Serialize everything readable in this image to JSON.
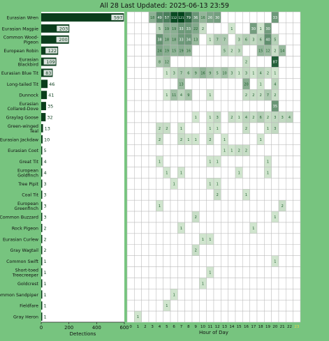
{
  "title": "All 28 Last Updated: 2025-06-13 23:59",
  "chart_data": [
    {
      "type": "bar",
      "orientation": "horizontal",
      "xlabel": "Detections",
      "xlim": [
        0,
        600
      ],
      "xticks": [
        "0",
        "200",
        "400",
        "600"
      ],
      "categories": [
        "Eurasian Wren",
        "Eurasian Magpie",
        "Common Wood-Pigeon",
        "European Robin",
        "Eurasian Blackbird",
        "Eurasian Blue Tit",
        "Long-tailed Tit",
        "Dunnock",
        "Eurasian Collared-Dove",
        "Graylag Goose",
        "Green-winged Teal",
        "Eurasian Jackdaw",
        "Eurasian Coot",
        "Great Tit",
        "European Goldfinch",
        "Tree Pipit",
        "Coal Tit",
        "European Greenfinch",
        "Common Buzzard",
        "Rock Pigeon",
        "Eurasian Curlew",
        "Gray Wagtail",
        "Common Swift",
        "Short-toed Treecreeper",
        "Goldcrest",
        "Common Sandpiper",
        "Fieldfare",
        "Gray Heron"
      ],
      "category_lines": [
        [
          "Eurasian Wren"
        ],
        [
          "Eurasian Magpie"
        ],
        [
          "Common Wood-",
          "Pigeon"
        ],
        [
          "European Robin"
        ],
        [
          "Eurasian",
          "Blackbird"
        ],
        [
          "Eurasian Blue Tit"
        ],
        [
          "Long-tailed Tit"
        ],
        [
          "Dunnock"
        ],
        [
          "Eurasian",
          "Collared-Dove"
        ],
        [
          "Graylag Goose"
        ],
        [
          "Green-winged",
          "Teal"
        ],
        [
          "Eurasian Jackdaw"
        ],
        [
          "Eurasian Coot"
        ],
        [
          "Great Tit"
        ],
        [
          "European",
          "Goldfinch"
        ],
        [
          "Tree Pipit"
        ],
        [
          "Coal Tit"
        ],
        [
          "European",
          "Greenfinch"
        ],
        [
          "Common Buzzard"
        ],
        [
          "Rock Pigeon"
        ],
        [
          "Eurasian Curlew"
        ],
        [
          "Gray Wagtail"
        ],
        [
          "Common Swift"
        ],
        [
          "Short-toed",
          "Treecreeper"
        ],
        [
          "Goldcrest"
        ],
        [
          "Common Sandpiper"
        ],
        [
          "Fieldfare"
        ],
        [
          "Gray Heron"
        ]
      ],
      "values": [
        597,
        203,
        200,
        122,
        109,
        83,
        46,
        41,
        35,
        32,
        13,
        10,
        5,
        4,
        4,
        3,
        3,
        3,
        3,
        2,
        2,
        2,
        1,
        1,
        1,
        1,
        1,
        1
      ]
    },
    {
      "type": "heatmap",
      "xlabel": "Hour of Day",
      "hours": [
        "0",
        "1",
        "2",
        "3",
        "4",
        "5",
        "6",
        "7",
        "8",
        "9",
        "10",
        "11",
        "12",
        "13",
        "14",
        "15",
        "16",
        "17",
        "18",
        "19",
        "20",
        "21",
        "22",
        "23"
      ],
      "colors": {
        "low": "#e5f5e0",
        "high": "#00441b",
        "current_hour": "#e8d44d"
      },
      "current_hour": 23,
      "rows": [
        [
          0,
          0,
          0,
          18,
          49,
          57,
          112,
          121,
          79,
          36,
          16,
          26,
          30,
          0,
          0,
          0,
          0,
          0,
          0,
          0,
          33,
          0,
          0,
          0
        ],
        [
          0,
          0,
          0,
          0,
          5,
          19,
          19,
          33,
          33,
          22,
          2,
          0,
          0,
          0,
          1,
          0,
          0,
          30,
          1,
          30,
          0,
          0,
          0,
          0
        ],
        [
          0,
          0,
          0,
          0,
          38,
          18,
          18,
          33,
          34,
          13,
          0,
          1,
          7,
          7,
          0,
          3,
          6,
          3,
          6,
          40,
          5,
          0,
          0,
          0
        ],
        [
          0,
          0,
          0,
          0,
          24,
          19,
          15,
          19,
          16,
          0,
          0,
          0,
          0,
          5,
          2,
          3,
          0,
          0,
          15,
          12,
          2,
          14,
          0,
          0
        ],
        [
          0,
          0,
          0,
          0,
          8,
          12,
          0,
          0,
          0,
          0,
          0,
          0,
          0,
          0,
          0,
          0,
          2,
          0,
          0,
          0,
          87,
          0,
          0,
          0
        ],
        [
          0,
          0,
          0,
          0,
          0,
          1,
          3,
          7,
          6,
          9,
          16,
          9,
          5,
          10,
          3,
          1,
          3,
          1,
          4,
          2,
          1,
          0,
          0,
          0
        ],
        [
          0,
          0,
          0,
          0,
          0,
          0,
          0,
          13,
          0,
          0,
          0,
          0,
          0,
          0,
          0,
          0,
          20,
          0,
          1,
          0,
          4,
          0,
          0,
          0
        ],
        [
          0,
          0,
          0,
          0,
          0,
          1,
          11,
          4,
          9,
          0,
          0,
          1,
          0,
          0,
          0,
          0,
          2,
          2,
          2,
          7,
          2,
          0,
          0,
          0
        ],
        [
          0,
          0,
          0,
          0,
          0,
          0,
          0,
          0,
          0,
          0,
          0,
          0,
          0,
          0,
          0,
          0,
          0,
          0,
          0,
          0,
          35,
          0,
          0,
          0
        ],
        [
          0,
          0,
          0,
          0,
          0,
          0,
          0,
          0,
          0,
          1,
          0,
          1,
          3,
          0,
          2,
          1,
          4,
          2,
          6,
          2,
          3,
          3,
          4,
          0
        ],
        [
          0,
          0,
          0,
          0,
          2,
          2,
          0,
          1,
          0,
          0,
          0,
          1,
          1,
          0,
          0,
          0,
          2,
          0,
          0,
          1,
          3,
          0,
          0,
          0
        ],
        [
          0,
          0,
          0,
          0,
          2,
          0,
          0,
          2,
          1,
          1,
          0,
          2,
          0,
          1,
          0,
          0,
          0,
          0,
          1,
          0,
          0,
          0,
          0,
          0
        ],
        [
          0,
          0,
          0,
          0,
          0,
          0,
          0,
          0,
          0,
          0,
          0,
          0,
          0,
          1,
          1,
          2,
          2,
          0,
          0,
          0,
          0,
          0,
          0,
          0
        ],
        [
          0,
          0,
          0,
          0,
          1,
          0,
          0,
          0,
          0,
          0,
          0,
          1,
          1,
          0,
          0,
          0,
          0,
          0,
          0,
          1,
          0,
          0,
          0,
          0
        ],
        [
          0,
          0,
          0,
          0,
          0,
          1,
          0,
          1,
          0,
          0,
          0,
          0,
          0,
          0,
          0,
          1,
          0,
          0,
          0,
          1,
          0,
          0,
          0,
          0
        ],
        [
          0,
          0,
          0,
          0,
          0,
          0,
          1,
          0,
          0,
          0,
          0,
          1,
          1,
          0,
          0,
          0,
          0,
          0,
          0,
          0,
          0,
          0,
          0,
          0
        ],
        [
          0,
          0,
          0,
          0,
          0,
          0,
          0,
          0,
          0,
          0,
          0,
          0,
          2,
          0,
          0,
          0,
          1,
          0,
          0,
          0,
          0,
          0,
          0,
          0
        ],
        [
          0,
          0,
          0,
          0,
          1,
          0,
          0,
          0,
          0,
          0,
          0,
          0,
          0,
          0,
          0,
          0,
          0,
          0,
          0,
          0,
          0,
          2,
          0,
          0
        ],
        [
          0,
          0,
          0,
          0,
          0,
          0,
          0,
          0,
          0,
          2,
          0,
          0,
          0,
          0,
          0,
          0,
          0,
          0,
          0,
          0,
          1,
          0,
          0,
          0
        ],
        [
          0,
          0,
          0,
          0,
          0,
          0,
          0,
          1,
          0,
          0,
          0,
          0,
          0,
          0,
          0,
          0,
          0,
          1,
          0,
          0,
          0,
          0,
          0,
          0
        ],
        [
          0,
          0,
          0,
          0,
          0,
          0,
          0,
          0,
          0,
          0,
          1,
          1,
          0,
          0,
          0,
          0,
          0,
          0,
          0,
          0,
          0,
          0,
          0,
          0
        ],
        [
          0,
          0,
          0,
          0,
          0,
          0,
          0,
          0,
          0,
          2,
          0,
          0,
          0,
          0,
          0,
          0,
          0,
          0,
          0,
          0,
          0,
          0,
          0,
          0
        ],
        [
          0,
          0,
          0,
          0,
          0,
          0,
          0,
          0,
          0,
          0,
          0,
          0,
          0,
          0,
          0,
          0,
          0,
          0,
          0,
          0,
          1,
          0,
          0,
          0
        ],
        [
          0,
          0,
          0,
          0,
          0,
          0,
          0,
          0,
          0,
          0,
          0,
          1,
          0,
          0,
          0,
          0,
          0,
          0,
          0,
          0,
          0,
          0,
          0,
          0
        ],
        [
          0,
          0,
          0,
          0,
          0,
          0,
          0,
          0,
          0,
          0,
          1,
          0,
          0,
          0,
          0,
          0,
          0,
          0,
          0,
          0,
          0,
          0,
          0,
          0
        ],
        [
          0,
          0,
          0,
          0,
          0,
          0,
          1,
          0,
          0,
          0,
          0,
          0,
          0,
          0,
          0,
          0,
          0,
          0,
          0,
          0,
          0,
          0,
          0,
          0
        ],
        [
          0,
          0,
          0,
          0,
          0,
          1,
          0,
          0,
          0,
          0,
          0,
          0,
          0,
          0,
          0,
          0,
          0,
          0,
          0,
          0,
          0,
          0,
          0,
          0
        ],
        [
          0,
          1,
          0,
          0,
          0,
          0,
          0,
          0,
          0,
          0,
          0,
          0,
          0,
          0,
          0,
          0,
          0,
          0,
          0,
          0,
          0,
          0,
          0,
          0
        ]
      ]
    }
  ]
}
